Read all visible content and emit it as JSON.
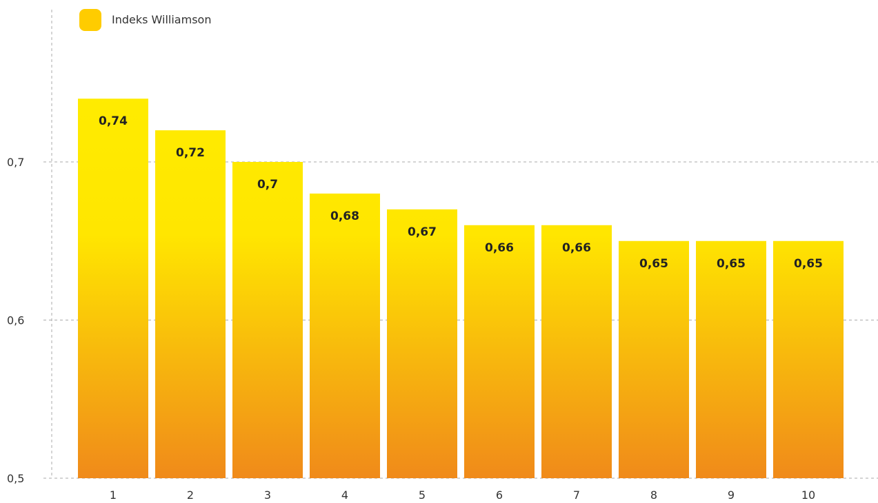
{
  "chart_data": {
    "type": "bar",
    "categories": [
      "1",
      "2",
      "3",
      "4",
      "5",
      "6",
      "7",
      "8",
      "9",
      "10"
    ],
    "series": [
      {
        "name": "Indeks Williamson",
        "values": [
          0.74,
          0.72,
          0.7,
          0.68,
          0.67,
          0.66,
          0.66,
          0.65,
          0.65,
          0.65
        ],
        "labels": [
          "0,74",
          "0,72",
          "0,7",
          "0,68",
          "0,67",
          "0,66",
          "0,66",
          "0,65",
          "0,65",
          "0,65"
        ]
      }
    ],
    "ylim": [
      0.5,
      0.78
    ],
    "yticks": [
      0.5,
      0.6,
      0.7
    ],
    "ytick_labels": [
      "0,5",
      "0,6",
      "0,7"
    ],
    "grid": true,
    "legend": "top-left",
    "colors": {
      "bar_top": "#FFEE00",
      "bar_mid": "#FFE600",
      "bar_bottom": "#F08A1A",
      "legend_swatch": "#FFCC00",
      "grid": "#AAAAAA"
    }
  }
}
